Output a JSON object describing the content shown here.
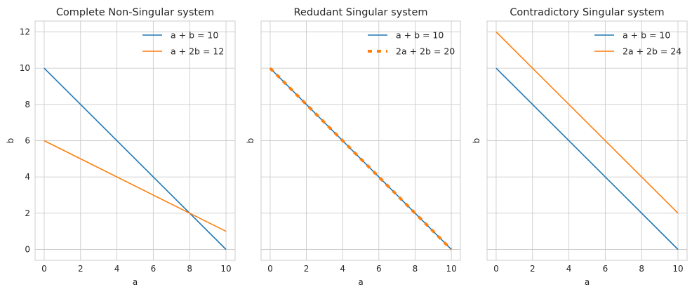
{
  "chart_data": [
    {
      "type": "line",
      "title": "Complete Non-Singular system",
      "xlabel": "a",
      "ylabel": "b",
      "xlim": [
        -0.5,
        10.5
      ],
      "ylim": [
        -0.6,
        12.6
      ],
      "xticks": [
        0,
        2,
        4,
        6,
        8,
        10
      ],
      "yticks": [
        0,
        2,
        4,
        6,
        8,
        10,
        12
      ],
      "show_yticklabels": true,
      "grid": true,
      "legend": "top-right",
      "series": [
        {
          "name": "a + b = 10",
          "color": "#1f77b4",
          "style": "solid",
          "x": [
            0,
            10
          ],
          "y": [
            10,
            0
          ]
        },
        {
          "name": "a + 2b = 12",
          "color": "#ff7f0e",
          "style": "solid",
          "x": [
            0,
            10
          ],
          "y": [
            6,
            1
          ]
        }
      ]
    },
    {
      "type": "line",
      "title": "Redudant Singular system",
      "xlabel": "a",
      "ylabel": "b",
      "xlim": [
        -0.5,
        10.5
      ],
      "ylim": [
        -0.6,
        12.6
      ],
      "xticks": [
        0,
        2,
        4,
        6,
        8,
        10
      ],
      "yticks": [
        0,
        2,
        4,
        6,
        8,
        10,
        12
      ],
      "show_yticklabels": false,
      "grid": true,
      "legend": "top-right",
      "series": [
        {
          "name": "a + b = 10",
          "color": "#1f77b4",
          "style": "solid",
          "x": [
            0,
            10
          ],
          "y": [
            10,
            0
          ]
        },
        {
          "name": "2a + 2b = 20",
          "color": "#ff7f0e",
          "style": "dashed",
          "x": [
            0,
            10
          ],
          "y": [
            10,
            0
          ]
        }
      ]
    },
    {
      "type": "line",
      "title": "Contradictory Singular system",
      "xlabel": "a",
      "ylabel": "b",
      "xlim": [
        -0.5,
        10.5
      ],
      "ylim": [
        -0.6,
        12.6
      ],
      "xticks": [
        0,
        2,
        4,
        6,
        8,
        10
      ],
      "yticks": [
        0,
        2,
        4,
        6,
        8,
        10,
        12
      ],
      "show_yticklabels": false,
      "grid": true,
      "legend": "top-right",
      "series": [
        {
          "name": "a + b = 10",
          "color": "#1f77b4",
          "style": "solid",
          "x": [
            0,
            10
          ],
          "y": [
            10,
            0
          ]
        },
        {
          "name": "2a + 2b = 24",
          "color": "#ff7f0e",
          "style": "solid",
          "x": [
            0,
            10
          ],
          "y": [
            12,
            2
          ]
        }
      ]
    }
  ]
}
